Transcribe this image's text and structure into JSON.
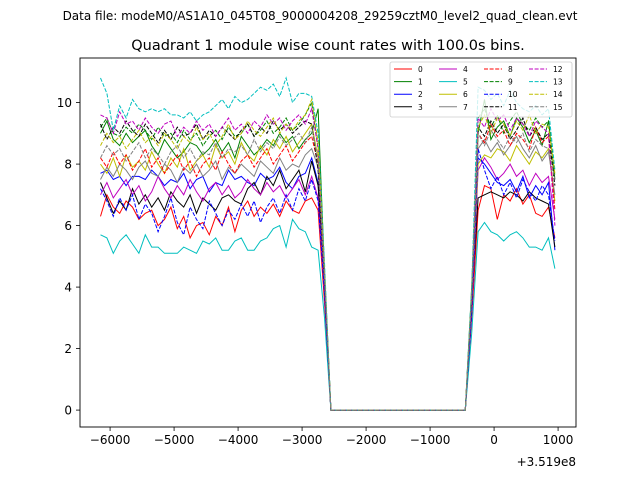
{
  "chart_data": {
    "type": "line",
    "suptitle": "Data file: modeM0/AS1A10_045T08_9000004208_29259cztM0_level2_quad_clean.evt",
    "title": "Quadrant 1 module wise count rates with 100.0s bins.",
    "xlabel": "",
    "ylabel": "",
    "x_offset_label": "+3.519e8",
    "xlim": [
      -6470,
      1280
    ],
    "ylim": [
      -0.55,
      11.45
    ],
    "x_ticks": [
      -6000,
      -5000,
      -4000,
      -3000,
      -2000,
      -1000,
      0,
      1000
    ],
    "x_tick_labels": [
      "−6000",
      "−5000",
      "−4000",
      "−3000",
      "−2000",
      "−1000",
      "0",
      "1000"
    ],
    "y_ticks": [
      0,
      2,
      4,
      6,
      8,
      10
    ],
    "y_tick_labels": [
      "0",
      "2",
      "4",
      "6",
      "8",
      "10"
    ],
    "grid": false,
    "legend_placement": "top-right",
    "x_start": -6150,
    "x_step": 100,
    "series": [
      {
        "name": "0",
        "color": "#ff0000",
        "dash": false,
        "values": [
          6.3,
          7.0,
          6.6,
          6.4,
          6.8,
          6.6,
          6.2,
          6.4,
          6.5,
          6.0,
          6.2,
          6.6,
          5.9,
          6.3,
          5.6,
          6.0,
          6.1,
          5.7,
          6.3,
          6.0,
          6.6,
          5.8,
          6.5,
          6.8,
          6.3,
          6.6,
          6.4,
          6.7,
          6.3,
          6.8,
          6.5,
          6.4,
          6.8,
          6.9,
          6.5,
          3.5,
          0,
          0,
          0,
          0,
          0,
          0,
          0,
          0,
          0,
          0,
          0,
          0,
          0,
          0,
          0,
          0,
          0,
          0,
          0,
          0,
          0,
          0,
          3.0,
          6.5,
          7.3,
          7.2,
          6.2,
          7.0,
          6.8,
          7.2,
          6.7,
          7.0,
          6.4,
          6.3,
          6.6,
          5.6
        ]
      },
      {
        "name": "1",
        "color": "#008000",
        "dash": false,
        "values": [
          9.0,
          9.4,
          8.8,
          8.6,
          9.0,
          8.7,
          8.9,
          9.1,
          8.6,
          8.3,
          8.8,
          8.5,
          8.2,
          8.4,
          8.7,
          8.6,
          8.3,
          8.5,
          8.8,
          8.4,
          8.7,
          8.2,
          8.9,
          8.6,
          8.3,
          8.5,
          8.8,
          8.6,
          9.0,
          8.7,
          8.9,
          8.5,
          8.8,
          9.0,
          9.8,
          4.5,
          0,
          0,
          0,
          0,
          0,
          0,
          0,
          0,
          0,
          0,
          0,
          0,
          0,
          0,
          0,
          0,
          0,
          0,
          0,
          0,
          0,
          0,
          4.0,
          9.0,
          10.1,
          8.8,
          9.2,
          9.4,
          8.9,
          9.5,
          9.2,
          8.7,
          9.1,
          8.6,
          9.4,
          7.5
        ]
      },
      {
        "name": "2",
        "color": "#0000ff",
        "dash": false,
        "values": [
          7.7,
          7.8,
          7.5,
          7.6,
          7.3,
          7.6,
          7.6,
          7.5,
          7.8,
          7.6,
          7.3,
          7.5,
          7.4,
          7.7,
          7.2,
          7.5,
          7.6,
          7.1,
          7.4,
          7.3,
          7.8,
          7.5,
          7.6,
          7.4,
          7.3,
          7.7,
          7.5,
          7.6,
          7.9,
          7.4,
          7.2,
          7.6,
          7.7,
          8.2,
          7.4,
          4.0,
          0,
          0,
          0,
          0,
          0,
          0,
          0,
          0,
          0,
          0,
          0,
          0,
          0,
          0,
          0,
          0,
          0,
          0,
          0,
          0,
          0,
          0,
          3.5,
          8.2,
          8.0,
          7.7,
          7.4,
          7.3,
          7.5,
          7.1,
          7.6,
          6.9,
          7.3,
          7.0,
          7.4,
          5.2
        ]
      },
      {
        "name": "3",
        "color": "#000000",
        "dash": false,
        "values": [
          7.4,
          6.9,
          6.4,
          6.8,
          6.5,
          7.2,
          6.7,
          7.0,
          6.6,
          6.9,
          6.5,
          7.1,
          6.8,
          6.6,
          7.0,
          6.4,
          6.9,
          6.7,
          6.5,
          6.9,
          7.0,
          6.8,
          6.7,
          7.2,
          7.4,
          7.0,
          7.6,
          7.3,
          7.8,
          7.2,
          7.5,
          7.8,
          7.1,
          8.1,
          7.3,
          4.0,
          0,
          0,
          0,
          0,
          0,
          0,
          0,
          0,
          0,
          0,
          0,
          0,
          0,
          0,
          0,
          0,
          0,
          0,
          0,
          0,
          0,
          0,
          3.5,
          6.9,
          7.0,
          7.1,
          7.0,
          6.9,
          7.1,
          7.0,
          6.8,
          7.1,
          6.9,
          6.8,
          6.7,
          5.3
        ]
      },
      {
        "name": "4",
        "color": "#bf00bf",
        "dash": false,
        "values": [
          7.0,
          7.4,
          6.9,
          7.2,
          7.5,
          7.0,
          7.3,
          6.8,
          7.1,
          7.6,
          7.2,
          6.9,
          7.3,
          7.0,
          7.5,
          7.1,
          6.8,
          7.2,
          7.4,
          7.0,
          7.3,
          6.9,
          7.1,
          7.5,
          7.2,
          7.0,
          7.4,
          7.1,
          7.3,
          6.9,
          7.2,
          7.5,
          7.0,
          7.6,
          6.9,
          3.8,
          0,
          0,
          0,
          0,
          0,
          0,
          0,
          0,
          0,
          0,
          0,
          0,
          0,
          0,
          0,
          0,
          0,
          0,
          0,
          0,
          0,
          0,
          3.2,
          7.8,
          8.2,
          7.9,
          7.5,
          7.7,
          8.0,
          7.6,
          7.8,
          7.3,
          7.7,
          7.4,
          7.6,
          6.2
        ]
      },
      {
        "name": "5",
        "color": "#00bfbf",
        "dash": false,
        "values": [
          5.7,
          5.6,
          5.1,
          5.5,
          5.7,
          5.4,
          5.1,
          5.7,
          5.3,
          5.3,
          5.1,
          5.1,
          5.1,
          5.3,
          5.2,
          5.1,
          5.5,
          5.4,
          5.6,
          5.2,
          5.2,
          5.5,
          5.6,
          5.2,
          5.2,
          5.5,
          5.6,
          5.9,
          6.0,
          5.3,
          6.2,
          5.9,
          5.8,
          5.3,
          5.2,
          3.0,
          0,
          0,
          0,
          0,
          0,
          0,
          0,
          0,
          0,
          0,
          0,
          0,
          0,
          0,
          0,
          0,
          0,
          0,
          0,
          0,
          0,
          0,
          2.5,
          5.8,
          6.1,
          5.8,
          5.7,
          5.5,
          5.7,
          5.8,
          5.6,
          5.3,
          5.3,
          5.2,
          5.6,
          4.6
        ]
      },
      {
        "name": "6",
        "color": "#bfbf00",
        "dash": false,
        "values": [
          8.0,
          7.7,
          8.2,
          7.6,
          8.3,
          7.9,
          8.1,
          7.8,
          8.4,
          8.0,
          7.7,
          8.2,
          7.9,
          8.5,
          7.8,
          8.1,
          8.3,
          7.9,
          8.6,
          8.2,
          8.4,
          8.0,
          8.7,
          8.3,
          8.1,
          8.6,
          8.3,
          8.8,
          8.5,
          8.9,
          8.4,
          8.7,
          9.0,
          9.3,
          8.2,
          4.2,
          0,
          0,
          0,
          0,
          0,
          0,
          0,
          0,
          0,
          0,
          0,
          0,
          0,
          0,
          0,
          0,
          0,
          0,
          0,
          0,
          0,
          0,
          3.6,
          8.0,
          8.3,
          8.2,
          8.5,
          8.4,
          8.1,
          8.6,
          8.3,
          8.0,
          8.4,
          8.2,
          8.5,
          6.8
        ]
      },
      {
        "name": "7",
        "color": "#808080",
        "dash": false,
        "values": [
          7.5,
          7.9,
          7.6,
          8.0,
          7.8,
          7.5,
          7.9,
          8.1,
          7.7,
          7.6,
          8.0,
          7.8,
          7.4,
          7.9,
          7.7,
          8.0,
          7.6,
          7.8,
          8.1,
          7.5,
          7.9,
          7.7,
          8.0,
          7.8,
          7.6,
          8.1,
          7.9,
          7.7,
          8.2,
          7.8,
          8.0,
          7.9,
          8.3,
          8.5,
          7.9,
          4.0,
          0,
          0,
          0,
          0,
          0,
          0,
          0,
          0,
          0,
          0,
          0,
          0,
          0,
          0,
          0,
          0,
          0,
          0,
          0,
          0,
          0,
          0,
          3.4,
          8.5,
          8.8,
          8.4,
          8.7,
          8.3,
          8.6,
          8.9,
          8.5,
          8.2,
          8.6,
          8.1,
          8.4,
          7.0
        ]
      },
      {
        "name": "8",
        "color": "#ff0000",
        "dash": true,
        "values": [
          8.2,
          7.9,
          8.4,
          8.0,
          8.3,
          7.8,
          8.1,
          8.5,
          7.9,
          8.2,
          7.7,
          8.0,
          8.3,
          7.8,
          8.1,
          7.6,
          8.0,
          8.2,
          7.8,
          8.4,
          8.0,
          7.7,
          8.1,
          8.3,
          7.9,
          8.2,
          8.5,
          8.0,
          8.3,
          8.6,
          8.1,
          8.4,
          8.7,
          8.9,
          8.0,
          4.2,
          0,
          0,
          0,
          0,
          0,
          0,
          0,
          0,
          0,
          0,
          0,
          0,
          0,
          0,
          0,
          0,
          0,
          0,
          0,
          0,
          0,
          0,
          3.6,
          9.0,
          8.7,
          9.3,
          8.9,
          9.1,
          8.6,
          9.0,
          8.8,
          8.5,
          9.2,
          8.7,
          8.9,
          6.5
        ]
      },
      {
        "name": "9",
        "color": "#008000",
        "dash": true,
        "values": [
          9.2,
          9.5,
          9.0,
          8.9,
          9.2,
          9.0,
          9.3,
          9.1,
          8.8,
          9.2,
          8.9,
          9.0,
          8.7,
          9.1,
          8.8,
          9.0,
          8.6,
          8.9,
          9.1,
          8.8,
          9.2,
          8.9,
          9.0,
          9.3,
          8.9,
          9.1,
          9.4,
          9.0,
          9.2,
          9.5,
          9.1,
          9.3,
          9.6,
          10.0,
          8.5,
          4.5,
          0,
          0,
          0,
          0,
          0,
          0,
          0,
          0,
          0,
          0,
          0,
          0,
          0,
          0,
          0,
          0,
          0,
          0,
          0,
          0,
          0,
          0,
          3.8,
          9.5,
          9.8,
          9.2,
          9.6,
          9.0,
          9.4,
          9.7,
          9.3,
          9.1,
          9.5,
          9.2,
          9.4,
          7.6
        ]
      },
      {
        "name": "10",
        "color": "#0000ff",
        "dash": true,
        "values": [
          7.2,
          6.8,
          6.3,
          6.9,
          6.5,
          7.0,
          6.2,
          6.7,
          6.4,
          5.8,
          6.3,
          6.9,
          6.1,
          5.7,
          6.6,
          6.2,
          5.9,
          6.8,
          6.4,
          6.0,
          6.5,
          6.2,
          6.7,
          6.3,
          6.8,
          6.1,
          6.6,
          6.9,
          6.4,
          7.0,
          6.5,
          7.2,
          6.8,
          7.5,
          6.8,
          3.8,
          0,
          0,
          0,
          0,
          0,
          0,
          0,
          0,
          0,
          0,
          0,
          0,
          0,
          0,
          0,
          0,
          0,
          0,
          0,
          0,
          0,
          0,
          3.2,
          8.5,
          7.8,
          7.2,
          7.6,
          7.0,
          7.4,
          6.9,
          7.5,
          7.1,
          6.8,
          7.3,
          7.0,
          5.5
        ]
      },
      {
        "name": "11",
        "color": "#000000",
        "dash": true,
        "values": [
          9.3,
          8.8,
          9.2,
          9.0,
          9.4,
          9.1,
          8.9,
          9.3,
          9.0,
          8.7,
          9.1,
          8.8,
          9.2,
          8.9,
          9.0,
          9.3,
          8.8,
          9.1,
          8.9,
          9.2,
          9.0,
          8.8,
          9.1,
          9.3,
          8.9,
          9.2,
          9.0,
          9.4,
          9.1,
          9.3,
          9.0,
          9.2,
          9.4,
          9.3,
          7.8,
          4.2,
          0,
          0,
          0,
          0,
          0,
          0,
          0,
          0,
          0,
          0,
          0,
          0,
          0,
          0,
          0,
          0,
          0,
          0,
          0,
          0,
          0,
          0,
          3.6,
          9.2,
          8.9,
          9.4,
          9.0,
          9.3,
          8.8,
          9.1,
          9.5,
          8.9,
          9.2,
          8.8,
          9.0,
          7.3
        ]
      },
      {
        "name": "12",
        "color": "#bf00bf",
        "dash": true,
        "values": [
          9.6,
          9.5,
          9.0,
          9.7,
          9.3,
          9.4,
          9.1,
          9.5,
          9.2,
          9.0,
          9.3,
          9.4,
          8.9,
          9.2,
          9.0,
          9.4,
          9.1,
          9.3,
          8.9,
          9.2,
          9.5,
          9.1,
          9.3,
          9.0,
          9.4,
          9.2,
          9.6,
          9.3,
          9.5,
          9.1,
          9.4,
          9.6,
          9.3,
          9.8,
          8.5,
          4.5,
          0,
          0,
          0,
          0,
          0,
          0,
          0,
          0,
          0,
          0,
          0,
          0,
          0,
          0,
          0,
          0,
          0,
          0,
          0,
          0,
          0,
          0,
          3.8,
          9.5,
          9.2,
          9.8,
          9.4,
          9.6,
          9.1,
          9.5,
          9.3,
          8.9,
          9.4,
          9.2,
          9.0,
          6.0
        ]
      },
      {
        "name": "13",
        "color": "#00bfbf",
        "dash": true,
        "values": [
          10.8,
          10.3,
          9.1,
          9.9,
          9.5,
          10.1,
          9.8,
          9.7,
          9.8,
          9.7,
          9.8,
          9.6,
          9.6,
          9.5,
          9.7,
          9.4,
          9.6,
          9.7,
          9.9,
          10.1,
          9.8,
          10.2,
          10.0,
          10.1,
          10.3,
          10.5,
          10.4,
          10.6,
          10.2,
          10.8,
          10.0,
          10.3,
          10.3,
          10.2,
          9.0,
          4.8,
          0,
          0,
          0,
          0,
          0,
          0,
          0,
          0,
          0,
          0,
          0,
          0,
          0,
          0,
          0,
          0,
          0,
          0,
          0,
          0,
          0,
          0,
          4.0,
          10.5,
          10.4,
          10.1,
          10.3,
          9.9,
          10.4,
          10.0,
          9.8,
          9.7,
          9.9,
          9.6,
          9.8,
          7.8
        ]
      },
      {
        "name": "14",
        "color": "#bfbf00",
        "dash": true,
        "values": [
          8.6,
          9.0,
          8.7,
          8.9,
          8.5,
          8.8,
          9.1,
          8.7,
          8.9,
          8.6,
          9.0,
          8.8,
          8.5,
          8.9,
          8.7,
          9.2,
          8.8,
          9.0,
          8.6,
          8.9,
          9.3,
          8.8,
          9.0,
          9.4,
          9.1,
          8.9,
          9.2,
          9.5,
          9.0,
          9.3,
          9.1,
          9.4,
          9.6,
          10.1,
          8.7,
          4.5,
          0,
          0,
          0,
          0,
          0,
          0,
          0,
          0,
          0,
          0,
          0,
          0,
          0,
          0,
          0,
          0,
          0,
          0,
          0,
          0,
          0,
          0,
          3.8,
          9.2,
          9.6,
          9.0,
          9.5,
          9.3,
          8.9,
          9.4,
          9.1,
          9.6,
          9.0,
          9.3,
          9.2,
          7.7
        ]
      },
      {
        "name": "15",
        "color": "#808080",
        "dash": true,
        "values": [
          8.2,
          8.6,
          8.3,
          8.5,
          8.1,
          8.4,
          8.7,
          8.2,
          8.5,
          8.3,
          8.0,
          8.4,
          8.6,
          8.2,
          8.5,
          8.1,
          8.4,
          8.3,
          8.7,
          8.2,
          8.5,
          8.4,
          8.6,
          8.3,
          8.8,
          8.4,
          8.7,
          8.5,
          8.9,
          8.6,
          8.8,
          9.0,
          8.7,
          9.2,
          8.1,
          4.3,
          0,
          0,
          0,
          0,
          0,
          0,
          0,
          0,
          0,
          0,
          0,
          0,
          0,
          0,
          0,
          0,
          0,
          0,
          0,
          0,
          0,
          0,
          3.7,
          9.0,
          8.6,
          9.1,
          8.8,
          8.5,
          8.9,
          8.7,
          9.0,
          8.4,
          8.8,
          8.6,
          8.5,
          7.5
        ]
      }
    ]
  }
}
